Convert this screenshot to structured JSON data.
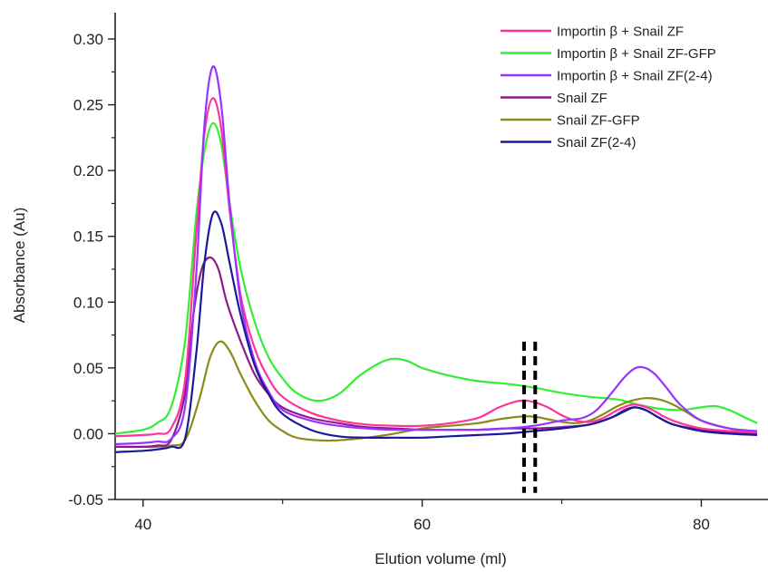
{
  "chart_data": {
    "type": "line",
    "xlabel": "Elution volume (ml)",
    "ylabel": "Absorbance (Au)",
    "xlim": [
      38,
      84
    ],
    "ylim": [
      -0.05,
      0.32
    ],
    "x_ticks": [
      40,
      60,
      80
    ],
    "y_ticks": [
      -0.05,
      0.0,
      0.05,
      0.1,
      0.15,
      0.2,
      0.25,
      0.3
    ],
    "y_tick_labels": [
      "-0.05",
      "0.00",
      "0.05",
      "0.10",
      "0.15",
      "0.20",
      "0.25",
      "0.30"
    ],
    "x_tick_labels": [
      "40",
      "60",
      "80"
    ],
    "legend_position": "top-right",
    "markers": [
      {
        "type": "vertical-dashed",
        "x": 67.3,
        "y_range": [
          -0.045,
          0.07
        ]
      },
      {
        "type": "vertical-dashed",
        "x": 68.1,
        "y_range": [
          -0.045,
          0.07
        ]
      }
    ],
    "series": [
      {
        "name": "Importin β + Snail ZF",
        "color": "#ff3399",
        "x": [
          38,
          40,
          41,
          42,
          43,
          43.8,
          44.4,
          45.0,
          45.6,
          46.2,
          47,
          48,
          49,
          50,
          52,
          54,
          56,
          58,
          60,
          62,
          64,
          65.5,
          67,
          68,
          69,
          70,
          71,
          72,
          73,
          74,
          75,
          75.8,
          76.5,
          77.5,
          78.5,
          80,
          82,
          84
        ],
        "y": [
          -0.002,
          -0.001,
          0.0,
          0.004,
          0.04,
          0.15,
          0.228,
          0.255,
          0.232,
          0.17,
          0.105,
          0.065,
          0.042,
          0.028,
          0.016,
          0.01,
          0.007,
          0.006,
          0.006,
          0.008,
          0.012,
          0.02,
          0.025,
          0.024,
          0.02,
          0.014,
          0.01,
          0.009,
          0.012,
          0.018,
          0.022,
          0.021,
          0.018,
          0.012,
          0.008,
          0.004,
          0.002,
          0.001
        ]
      },
      {
        "name": "Importin β + Snail ZF-GFP",
        "color": "#33ee33",
        "x": [
          38,
          40,
          41,
          42,
          43,
          43.8,
          44.4,
          45.0,
          45.6,
          46.2,
          47,
          48,
          49,
          50,
          51,
          52.5,
          54,
          55.5,
          57,
          58,
          59,
          60,
          62,
          64,
          66,
          68,
          70,
          72,
          74,
          75.5,
          77,
          78.5,
          80,
          81,
          82,
          83,
          84
        ],
        "y": [
          0.0,
          0.003,
          0.008,
          0.02,
          0.07,
          0.165,
          0.215,
          0.236,
          0.22,
          0.175,
          0.125,
          0.085,
          0.058,
          0.042,
          0.031,
          0.025,
          0.03,
          0.044,
          0.054,
          0.057,
          0.055,
          0.05,
          0.044,
          0.04,
          0.038,
          0.035,
          0.031,
          0.028,
          0.026,
          0.022,
          0.019,
          0.018,
          0.02,
          0.021,
          0.018,
          0.013,
          0.008
        ]
      },
      {
        "name": "Importin β + Snail ZF(2-4)",
        "color": "#9933ff",
        "x": [
          38,
          40,
          41,
          42,
          43,
          43.8,
          44.4,
          45.0,
          45.6,
          46.2,
          47,
          48,
          49,
          50,
          52,
          54,
          56,
          58,
          60,
          62,
          64,
          66,
          68,
          70,
          71.5,
          72.5,
          73.5,
          74.5,
          75.3,
          76,
          76.7,
          77.5,
          78.5,
          80,
          82,
          84
        ],
        "y": [
          -0.008,
          -0.007,
          -0.006,
          -0.004,
          0.02,
          0.12,
          0.235,
          0.279,
          0.25,
          0.175,
          0.1,
          0.055,
          0.032,
          0.018,
          0.01,
          0.006,
          0.004,
          0.003,
          0.003,
          0.003,
          0.003,
          0.004,
          0.006,
          0.01,
          0.012,
          0.018,
          0.03,
          0.043,
          0.05,
          0.05,
          0.045,
          0.035,
          0.022,
          0.01,
          0.004,
          0.002
        ]
      },
      {
        "name": "Snail ZF",
        "color": "#8b1a89",
        "x": [
          38,
          40,
          41,
          42,
          43,
          43.6,
          44.2,
          44.8,
          45.4,
          46,
          47,
          48,
          49,
          50,
          52,
          54,
          56,
          58,
          60,
          62,
          64,
          66,
          68,
          70,
          72,
          73.5,
          74.5,
          75.2,
          76,
          77,
          78,
          80,
          82,
          84
        ],
        "y": [
          -0.01,
          -0.01,
          -0.009,
          -0.005,
          0.03,
          0.09,
          0.125,
          0.134,
          0.125,
          0.1,
          0.07,
          0.045,
          0.03,
          0.02,
          0.012,
          0.008,
          0.005,
          0.004,
          0.003,
          0.003,
          0.003,
          0.004,
          0.004,
          0.005,
          0.007,
          0.012,
          0.018,
          0.02,
          0.018,
          0.012,
          0.007,
          0.003,
          0.001,
          0.0
        ]
      },
      {
        "name": "Snail ZF-GFP",
        "color": "#8b8b1a",
        "x": [
          38,
          40,
          41,
          42,
          43,
          44,
          44.8,
          45.5,
          46.2,
          47,
          48,
          49,
          50,
          51,
          52.5,
          54,
          56,
          58,
          60,
          62,
          64,
          65.5,
          67,
          68,
          69,
          70,
          71,
          72,
          73,
          74,
          75,
          76,
          77,
          78,
          79,
          80,
          82,
          84
        ],
        "y": [
          -0.01,
          -0.01,
          -0.01,
          -0.009,
          -0.005,
          0.025,
          0.058,
          0.07,
          0.063,
          0.045,
          0.025,
          0.01,
          0.002,
          -0.003,
          -0.005,
          -0.005,
          -0.003,
          0.0,
          0.004,
          0.006,
          0.008,
          0.011,
          0.013,
          0.013,
          0.011,
          0.009,
          0.008,
          0.01,
          0.015,
          0.021,
          0.025,
          0.027,
          0.026,
          0.022,
          0.016,
          0.01,
          0.004,
          0.001
        ]
      },
      {
        "name": "Snail ZF(2-4)",
        "color": "#1a1a99",
        "x": [
          38,
          40,
          41,
          42,
          43,
          43.8,
          44.4,
          45.0,
          45.6,
          46.2,
          47,
          48,
          49,
          50,
          52,
          54,
          56,
          58,
          60,
          62,
          64,
          66,
          68,
          70,
          72,
          73.5,
          74.5,
          75.2,
          76,
          77,
          78,
          80,
          82,
          84
        ],
        "y": [
          -0.014,
          -0.013,
          -0.012,
          -0.01,
          -0.004,
          0.06,
          0.13,
          0.167,
          0.16,
          0.13,
          0.09,
          0.052,
          0.03,
          0.015,
          0.003,
          -0.002,
          -0.003,
          -0.003,
          -0.003,
          -0.002,
          -0.001,
          0.0,
          0.002,
          0.004,
          0.007,
          0.012,
          0.017,
          0.02,
          0.018,
          0.012,
          0.007,
          0.002,
          0.0,
          -0.001
        ]
      }
    ]
  }
}
